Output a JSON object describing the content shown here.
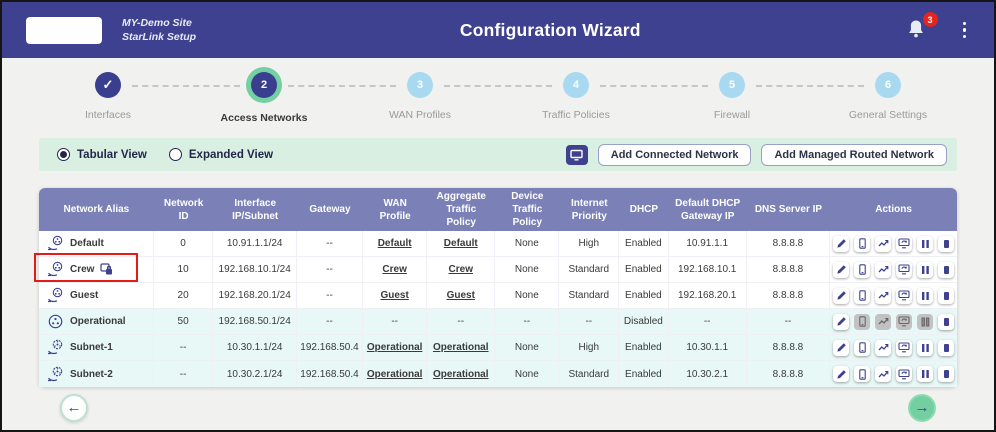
{
  "colors": {
    "header_bg": "#3d418f",
    "table_header_bg": "#7b80b7",
    "accent_green": "#74cfa0",
    "toolbar_bg": "#d8efe2",
    "row_tint": "#e7f8f6",
    "annotation_red": "#e41b17",
    "badge_red": "#e5251d"
  },
  "header": {
    "site_name": "MY-Demo Site",
    "site_subtitle": "StarLink Setup",
    "title": "Configuration Wizard",
    "notification_count": "3",
    "icons": [
      "bell-icon",
      "kebab-menu-icon"
    ]
  },
  "stepper": {
    "steps": [
      {
        "display": "✓",
        "label": "Interfaces",
        "state": "completed"
      },
      {
        "display": "2",
        "label": "Access Networks",
        "state": "active"
      },
      {
        "display": "3",
        "label": "WAN Profiles",
        "state": "upcoming"
      },
      {
        "display": "4",
        "label": "Traffic Policies",
        "state": "upcoming"
      },
      {
        "display": "5",
        "label": "Firewall",
        "state": "upcoming"
      },
      {
        "display": "6",
        "label": "General Settings",
        "state": "upcoming"
      }
    ]
  },
  "toolbar": {
    "view_options": [
      {
        "label": "Tabular View",
        "selected": true
      },
      {
        "label": "Expanded View",
        "selected": false
      }
    ],
    "expand_icon": "monitor-icon",
    "add_connected_label": "Add Connected Network",
    "add_managed_label": "Add Managed Routed Network"
  },
  "table": {
    "columns": [
      "Network Alias",
      "Network ID",
      "Interface IP/Subnet",
      "Gateway",
      "WAN Profile",
      "Aggregate Traffic Policy",
      "Device Traffic Policy",
      "Internet Priority",
      "DHCP",
      "Default DHCP Gateway IP",
      "DNS Server IP",
      "Actions"
    ],
    "action_icons": [
      "edit-icon",
      "devices-icon",
      "usage-graph-icon",
      "network-refresh-icon",
      "pause-icon",
      "stop-icon"
    ],
    "rows": [
      {
        "alias": "Default",
        "icon": "lan-hand-icon",
        "lock_badge": false,
        "network_id": "0",
        "ip_subnet": "10.91.1.1/24",
        "gateway": "--",
        "wan_profile": "Default",
        "aggregate_policy": "Default",
        "device_policy": "None",
        "internet_priority": "High",
        "dhcp": "Enabled",
        "dhcp_gateway_ip": "10.91.1.1",
        "dns_ip": "8.8.8.8",
        "highlighted": false,
        "tinted": false,
        "disabled_actions": []
      },
      {
        "alias": "Crew",
        "icon": "lan-hand-icon",
        "lock_badge": true,
        "network_id": "10",
        "ip_subnet": "192.168.10.1/24",
        "gateway": "--",
        "wan_profile": "Crew",
        "aggregate_policy": "Crew",
        "device_policy": "None",
        "internet_priority": "Standard",
        "dhcp": "Enabled",
        "dhcp_gateway_ip": "192.168.10.1",
        "dns_ip": "8.8.8.8",
        "highlighted": true,
        "tinted": false,
        "disabled_actions": []
      },
      {
        "alias": "Guest",
        "icon": "lan-hand-icon",
        "lock_badge": false,
        "network_id": "20",
        "ip_subnet": "192.168.20.1/24",
        "gateway": "--",
        "wan_profile": "Guest",
        "aggregate_policy": "Guest",
        "device_policy": "None",
        "internet_priority": "Standard",
        "dhcp": "Enabled",
        "dhcp_gateway_ip": "192.168.20.1",
        "dns_ip": "8.8.8.8",
        "highlighted": false,
        "tinted": false,
        "disabled_actions": []
      },
      {
        "alias": "Operational",
        "icon": "lan-icon",
        "lock_badge": false,
        "network_id": "50",
        "ip_subnet": "192.168.50.1/24",
        "gateway": "--",
        "wan_profile": "--",
        "aggregate_policy": "--",
        "device_policy": "--",
        "internet_priority": "--",
        "dhcp": "Disabled",
        "dhcp_gateway_ip": "--",
        "dns_ip": "--",
        "highlighted": false,
        "tinted": true,
        "disabled_actions": [
          "devices-icon",
          "usage-graph-icon",
          "network-refresh-icon",
          "pause-icon"
        ]
      },
      {
        "alias": "Subnet-1",
        "icon": "subnet-hand-icon",
        "lock_badge": false,
        "network_id": "--",
        "ip_subnet": "10.30.1.1/24",
        "gateway": "192.168.50.4",
        "wan_profile": "Operational",
        "aggregate_policy": "Operational",
        "device_policy": "None",
        "internet_priority": "High",
        "dhcp": "Enabled",
        "dhcp_gateway_ip": "10.30.1.1",
        "dns_ip": "8.8.8.8",
        "highlighted": false,
        "tinted": true,
        "disabled_actions": []
      },
      {
        "alias": "Subnet-2",
        "icon": "subnet-hand-icon",
        "lock_badge": false,
        "network_id": "--",
        "ip_subnet": "10.30.2.1/24",
        "gateway": "192.168.50.4",
        "wan_profile": "Operational",
        "aggregate_policy": "Operational",
        "device_policy": "None",
        "internet_priority": "Standard",
        "dhcp": "Enabled",
        "dhcp_gateway_ip": "10.30.2.1",
        "dns_ip": "8.8.8.8",
        "highlighted": false,
        "tinted": true,
        "disabled_actions": []
      }
    ]
  },
  "footer": {
    "back_arrow": "←",
    "next_arrow": "→"
  }
}
